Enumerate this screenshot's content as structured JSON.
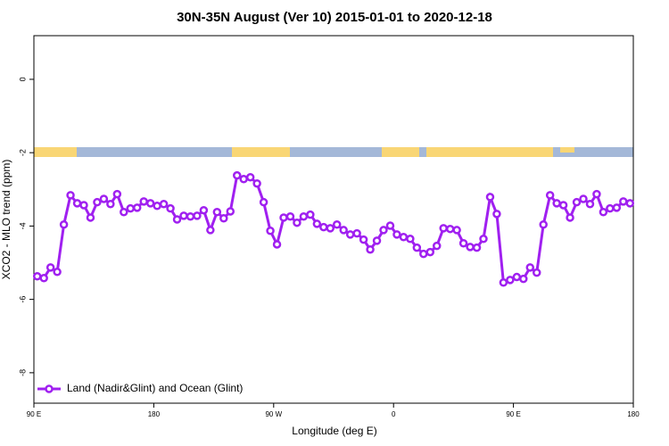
{
  "chart_data": {
    "type": "line",
    "title": "30N-35N August (Ver 10)   2015-01-01 to 2020-12-18",
    "x_label": "Longitude (deg E)",
    "y_label": "XCO2 - MLO trend (ppm)",
    "x": [
      92.5,
      97.5,
      102.5,
      107.5,
      112.5,
      117.5,
      122.5,
      127.5,
      132.5,
      137.5,
      142.5,
      147.5,
      152.5,
      157.5,
      162.5,
      167.5,
      172.5,
      177.5,
      182.5,
      187.5,
      192.5,
      197.5,
      202.5,
      207.5,
      212.5,
      217.5,
      222.5,
      227.5,
      232.5,
      237.5,
      242.5,
      247.5,
      252.5,
      257.5,
      262.5,
      267.5,
      272.5,
      277.5,
      282.5,
      287.5,
      292.5,
      297.5,
      302.5,
      307.5,
      312.5,
      317.5,
      322.5,
      327.5,
      332.5,
      337.5,
      342.5,
      347.5,
      352.5,
      357.5,
      362.5,
      367.5,
      372.5,
      377.5,
      382.5,
      387.5,
      392.5,
      397.5,
      402.5,
      407.5,
      412.5,
      417.5,
      422.5,
      427.5,
      432.5,
      437.5,
      442.5,
      447.5,
      452.5,
      457.5,
      462.5,
      467.5,
      472.5,
      477.5,
      482.5,
      487.5,
      492.5,
      497.5,
      502.5,
      507.5,
      512.5,
      517.5,
      522.5,
      527.5,
      532.5,
      537.5
    ],
    "series": [
      {
        "name": "Land (Nadir&Glint) and Ocean (Glint)",
        "color": "#a020f0",
        "values": [
          -5.37,
          -5.42,
          -5.13,
          -5.25,
          -3.96,
          -3.16,
          -3.38,
          -3.43,
          -3.77,
          -3.35,
          -3.26,
          -3.4,
          -3.13,
          -3.62,
          -3.52,
          -3.5,
          -3.33,
          -3.38,
          -3.45,
          -3.4,
          -3.52,
          -3.82,
          -3.72,
          -3.74,
          -3.72,
          -3.57,
          -4.11,
          -3.62,
          -3.79,
          -3.6,
          -2.62,
          -2.72,
          -2.67,
          -2.84,
          -3.35,
          -4.13,
          -4.5,
          -3.77,
          -3.74,
          -3.91,
          -3.74,
          -3.69,
          -3.94,
          -4.03,
          -4.06,
          -3.96,
          -4.11,
          -4.23,
          -4.2,
          -4.37,
          -4.64,
          -4.4,
          -4.11,
          -3.99,
          -4.23,
          -4.3,
          -4.35,
          -4.59,
          -4.76,
          -4.71,
          -4.54,
          -4.06,
          -4.08,
          -4.11,
          -4.47,
          -4.57,
          -4.59,
          -4.35,
          -3.21,
          -3.67,
          -5.54,
          -5.47,
          -5.39,
          -5.44,
          -5.13,
          -5.27,
          -3.96,
          -3.16,
          -3.38,
          -3.43,
          -3.77,
          -3.35,
          -3.26,
          -3.4,
          -3.13,
          -3.62,
          -3.52,
          -3.5,
          -3.33,
          -3.38
        ]
      }
    ],
    "xlim": [
      90,
      540
    ],
    "xticks": [
      {
        "value": 90,
        "label": "90 E"
      },
      180,
      {
        "value": 270,
        "label": "90 W"
      },
      {
        "value": 360,
        "label": "0"
      },
      {
        "value": 450,
        "label": "90 E"
      },
      {
        "value": 540,
        "label": "180"
      }
    ],
    "ylim": [
      -8.83,
      1.19
    ],
    "yticks": [
      0,
      -2,
      -4,
      -6,
      -8
    ],
    "legend": "bottom-left"
  }
}
